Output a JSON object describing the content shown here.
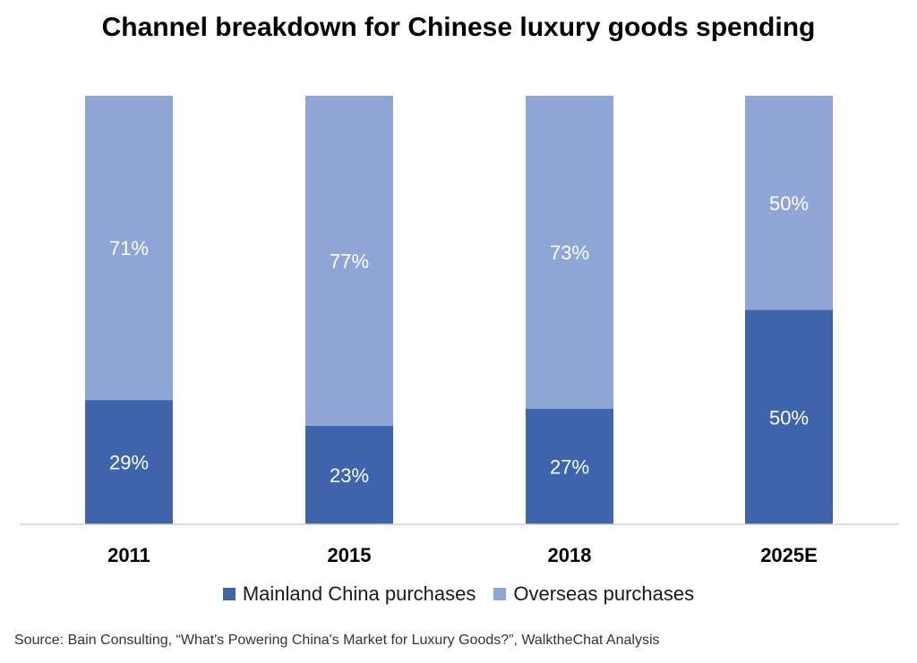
{
  "chart_data": {
    "type": "bar",
    "stacked": true,
    "title": "Channel breakdown for Chinese luxury goods spending",
    "categories": [
      "2011",
      "2015",
      "2018",
      "2025E"
    ],
    "series": [
      {
        "name": "Mainland China purchases",
        "values": [
          29,
          23,
          27,
          50
        ],
        "labels": [
          "29%",
          "23%",
          "27%",
          "50%"
        ],
        "color": "#3d64ad"
      },
      {
        "name": "Overseas purchases",
        "values": [
          71,
          77,
          73,
          50
        ],
        "labels": [
          "71%",
          "77%",
          "73%",
          "50%"
        ],
        "color": "#8fa5d5"
      }
    ],
    "ylim": [
      0,
      100
    ],
    "grid": false,
    "legend": "bottom",
    "source": "Source: Bain Consulting, “What's Powering China's Market for Luxury Goods?”, WalktheChat Analysis"
  }
}
